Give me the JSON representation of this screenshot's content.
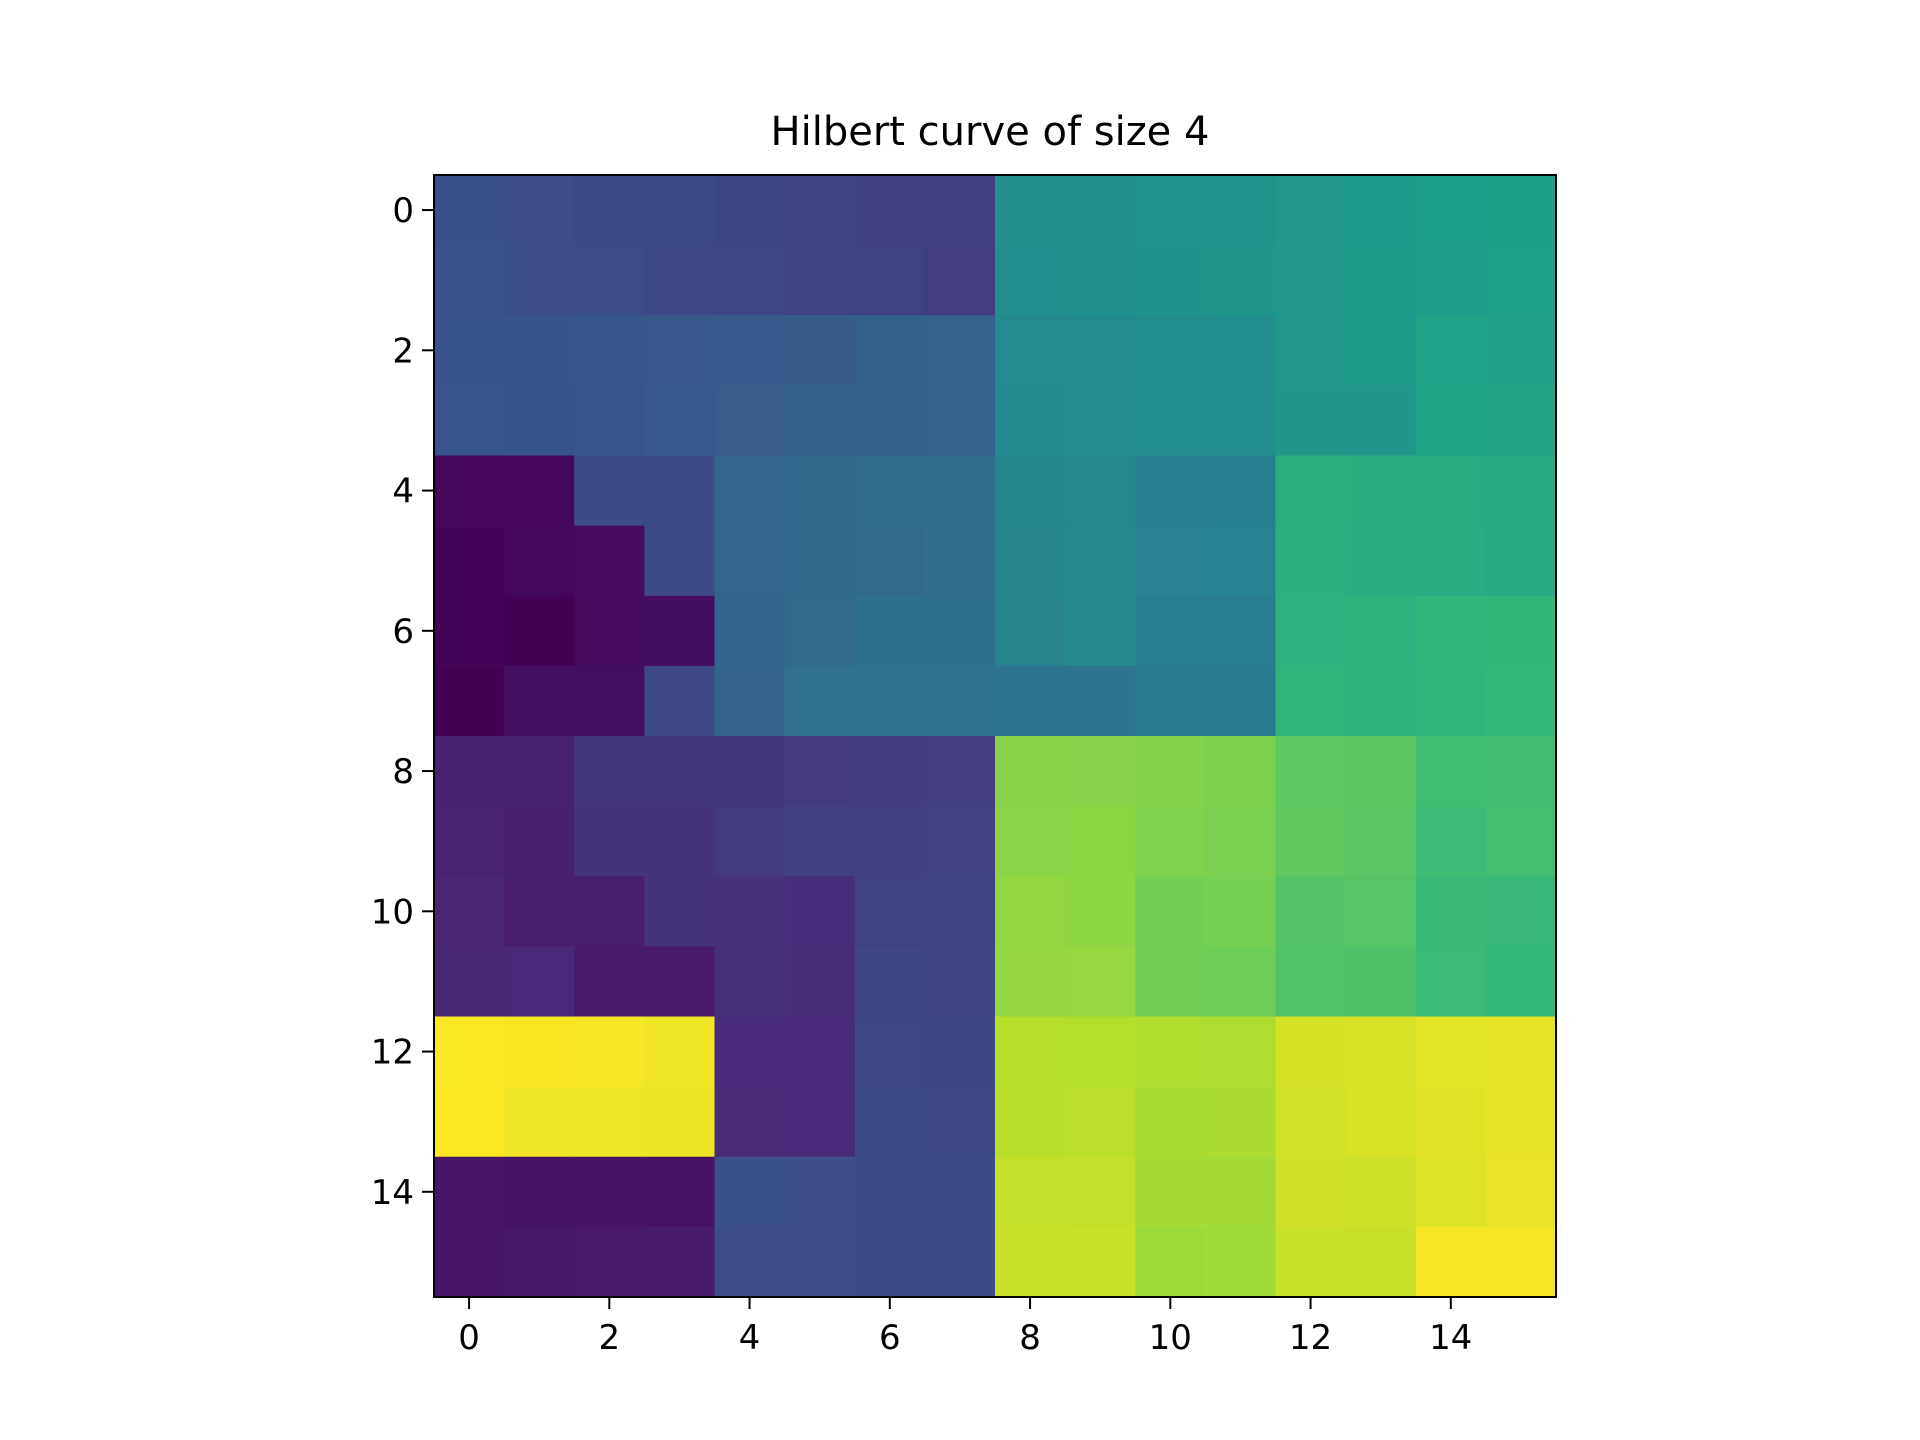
{
  "chart_data": {
    "type": "heatmap",
    "title": "Hilbert curve of size 4",
    "xlabel": "",
    "ylabel": "",
    "colormap": "viridis",
    "grid": false,
    "rows": 16,
    "cols": 16,
    "x_ticks": [
      0,
      2,
      4,
      6,
      8,
      10,
      12,
      14
    ],
    "y_ticks": [
      0,
      2,
      4,
      6,
      8,
      10,
      12,
      14
    ],
    "x_tick_labels": [
      "0",
      "2",
      "4",
      "6",
      "8",
      "10",
      "12",
      "14"
    ],
    "y_tick_labels": [
      "0",
      "2",
      "4",
      "6",
      "8",
      "10",
      "12",
      "14"
    ],
    "xlim": [
      -0.5,
      15.5
    ],
    "ylim": [
      15.5,
      -0.5
    ],
    "vmin": 0,
    "vmax": 255,
    "values": [
      [
        63,
        62,
        58,
        57,
        53,
        52,
        48,
        47,
        127,
        128,
        132,
        133,
        137,
        138,
        142,
        143
      ],
      [
        64,
        61,
        60,
        56,
        55,
        51,
        50,
        46,
        126,
        129,
        131,
        134,
        136,
        139,
        141,
        144
      ],
      [
        65,
        66,
        70,
        71,
        73,
        74,
        78,
        79,
        121,
        122,
        124,
        125,
        137,
        140,
        146,
        145
      ],
      [
        68,
        67,
        69,
        72,
        75,
        76,
        77,
        80,
        120,
        123,
        124,
        125,
        135,
        134,
        147,
        148
      ],
      [
        4,
        5,
        59,
        58,
        84,
        85,
        89,
        90,
        116,
        117,
        110,
        111,
        160,
        159,
        155,
        154
      ],
      [
        3,
        6,
        7,
        57,
        83,
        86,
        88,
        91,
        115,
        118,
        112,
        113,
        161,
        158,
        156,
        153
      ],
      [
        2,
        1,
        8,
        9,
        82,
        87,
        92,
        93,
        114,
        119,
        108,
        109,
        162,
        163,
        167,
        168
      ],
      [
        0,
        11,
        10,
        56,
        81,
        94,
        95,
        96,
        97,
        98,
        107,
        106,
        165,
        164,
        166,
        169
      ],
      [
        24,
        23,
        40,
        41,
        42,
        43,
        45,
        46,
        208,
        207,
        206,
        204,
        191,
        190,
        175,
        176
      ],
      [
        25,
        22,
        39,
        38,
        44,
        47,
        48,
        49,
        209,
        210,
        205,
        203,
        192,
        189,
        174,
        177
      ],
      [
        26,
        21,
        20,
        37,
        34,
        33,
        50,
        51,
        212,
        211,
        200,
        201,
        186,
        187,
        172,
        171
      ],
      [
        27,
        28,
        19,
        18,
        35,
        32,
        53,
        52,
        213,
        214,
        199,
        198,
        185,
        184,
        173,
        170
      ],
      [
        254,
        253,
        252,
        250,
        31,
        30,
        55,
        54,
        227,
        226,
        225,
        224,
        239,
        240,
        244,
        245
      ],
      [
        255,
        250,
        249,
        248,
        29,
        28,
        57,
        56,
        228,
        229,
        222,
        223,
        238,
        241,
        243,
        246
      ],
      [
        15,
        14,
        13,
        12,
        63,
        62,
        58,
        57,
        233,
        232,
        221,
        220,
        237,
        236,
        242,
        247
      ],
      [
        16,
        17,
        18,
        19,
        60,
        61,
        59,
        58,
        234,
        235,
        218,
        219,
        235,
        234,
        251,
        252
      ]
    ]
  }
}
